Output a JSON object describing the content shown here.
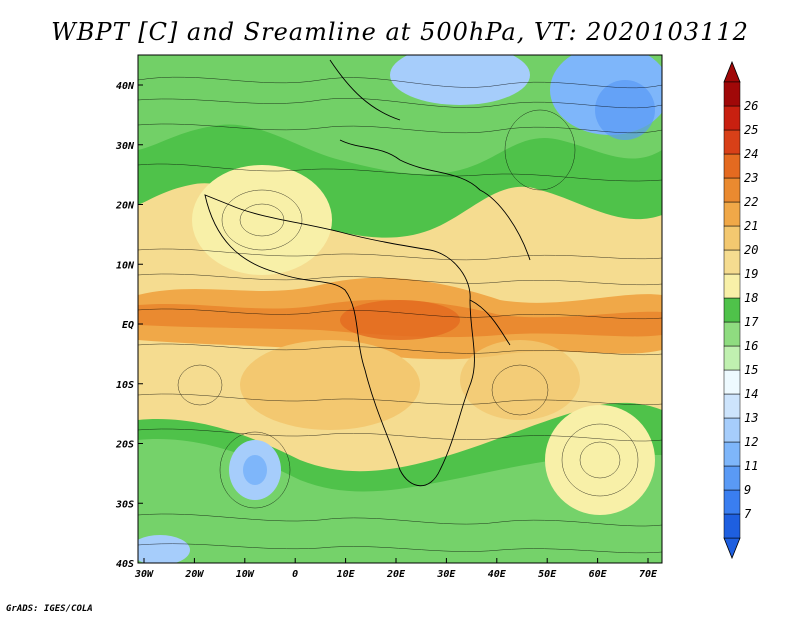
{
  "title": "WBPT [C] and Sreamline at 500hPa, VT: 2020103112",
  "footer": "GrADS: IGES/COLA",
  "map": {
    "x_ticks": [
      "30W",
      "20W",
      "10W",
      "0",
      "10E",
      "20E",
      "30E",
      "40E",
      "50E",
      "60E",
      "70E"
    ],
    "y_ticks": [
      "40N",
      "30N",
      "20N",
      "10N",
      "EQ",
      "10S",
      "20S",
      "30S",
      "40S"
    ]
  },
  "colorbar": {
    "levels": [
      "7",
      "9",
      "11",
      "12",
      "13",
      "14",
      "15",
      "16",
      "17",
      "18",
      "19",
      "20",
      "21",
      "22",
      "23",
      "24",
      "25",
      "26"
    ],
    "colors": [
      "#1e5fe0",
      "#3a7ef0",
      "#5a9af5",
      "#7eb6fa",
      "#a6cdfb",
      "#cde4fc",
      "#eefaff",
      "#c0f0b0",
      "#8fdc80",
      "#4fc24a",
      "#f8f0a8",
      "#f5dc90",
      "#f3c870",
      "#f0a848",
      "#ea8a30",
      "#e46a20",
      "#d84018",
      "#c82010",
      "#a00808"
    ]
  }
}
